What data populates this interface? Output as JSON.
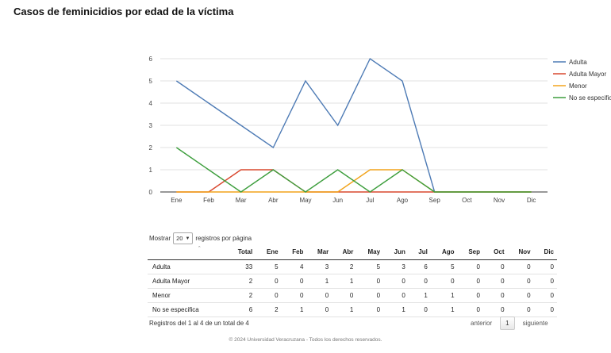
{
  "page": {
    "title": "Casos de feminicidios por edad de la víctima"
  },
  "chart_data": {
    "type": "line",
    "title": "",
    "xlabel": "",
    "ylabel": "",
    "categories": [
      "Ene",
      "Feb",
      "Mar",
      "Abr",
      "May",
      "Jun",
      "Jul",
      "Ago",
      "Sep",
      "Oct",
      "Nov",
      "Dic"
    ],
    "ylim": [
      0,
      6
    ],
    "yticks": [
      0,
      1,
      2,
      3,
      4,
      5,
      6
    ],
    "grid": true,
    "legend_position": "right",
    "series": [
      {
        "name": "Adulta",
        "color": "#4e7bb5",
        "values": [
          5,
          4,
          3,
          2,
          5,
          3,
          6,
          5,
          0,
          0,
          0,
          0
        ]
      },
      {
        "name": "Adulta Mayor",
        "color": "#d9482f",
        "values": [
          0,
          0,
          1,
          1,
          0,
          0,
          0,
          0,
          0,
          0,
          0,
          0
        ]
      },
      {
        "name": "Menor",
        "color": "#f2a41c",
        "values": [
          0,
          0,
          0,
          0,
          0,
          0,
          1,
          1,
          0,
          0,
          0,
          0
        ]
      },
      {
        "name": "No se especifica",
        "color": "#3d9e3d",
        "values": [
          2,
          1,
          0,
          1,
          0,
          1,
          0,
          1,
          0,
          0,
          0,
          0
        ]
      }
    ]
  },
  "table": {
    "length": {
      "prefix": "Mostrar",
      "selected": "20",
      "suffix": "registros por página"
    },
    "sort_indicator": "ˆ",
    "headers": [
      "",
      "Total",
      "Ene",
      "Feb",
      "Mar",
      "Abr",
      "May",
      "Jun",
      "Jul",
      "Ago",
      "Sep",
      "Oct",
      "Nov",
      "Dic"
    ],
    "rows": [
      [
        "Adulta",
        "33",
        "5",
        "4",
        "3",
        "2",
        "5",
        "3",
        "6",
        "5",
        "0",
        "0",
        "0",
        "0"
      ],
      [
        "Adulta Mayor",
        "2",
        "0",
        "0",
        "1",
        "1",
        "0",
        "0",
        "0",
        "0",
        "0",
        "0",
        "0",
        "0"
      ],
      [
        "Menor",
        "2",
        "0",
        "0",
        "0",
        "0",
        "0",
        "0",
        "1",
        "1",
        "0",
        "0",
        "0",
        "0"
      ],
      [
        "No se especifica",
        "6",
        "2",
        "1",
        "0",
        "1",
        "0",
        "1",
        "0",
        "1",
        "0",
        "0",
        "0",
        "0"
      ]
    ],
    "info": "Registros del 1 al 4 de un total de 4",
    "pagination": {
      "prev": "anterior",
      "current": "1",
      "next": "siguiente"
    }
  },
  "footer": {
    "text": "© 2024 Universidad Veracruzana - Todos los derechos reservados."
  }
}
